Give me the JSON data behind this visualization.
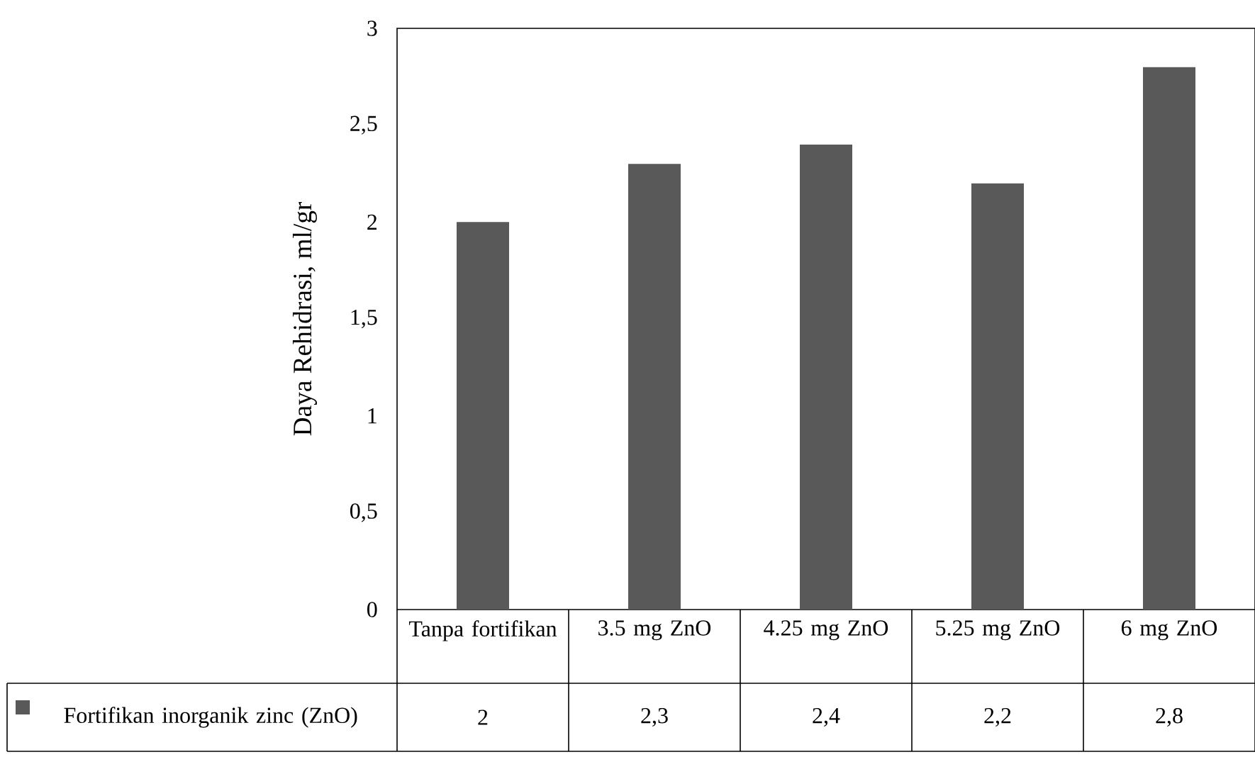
{
  "chart_data": {
    "type": "bar",
    "ylabel": "Daya Rehidrasi, ml/gr",
    "categories": [
      "Tanpa fortifikan",
      "3.5 mg ZnO",
      "4.25 mg ZnO",
      "5.25 mg ZnO",
      "6 mg ZnO"
    ],
    "series": [
      {
        "name": "Fortifikan inorganik zinc (ZnO)",
        "color": "#595959",
        "values": [
          2,
          2.3,
          2.4,
          2.2,
          2.8
        ],
        "value_labels": [
          "2",
          "2,3",
          "2,4",
          "2,2",
          "2,8"
        ]
      }
    ],
    "ylim": [
      0,
      3
    ],
    "yticks": [
      0,
      {
        "value": 0.5,
        "label": "0,5"
      },
      1,
      {
        "value": 1.5,
        "label": "1,5"
      },
      2,
      {
        "value": 2.5,
        "label": "2,5"
      },
      3
    ],
    "grid": false,
    "legend": "bottom left"
  }
}
